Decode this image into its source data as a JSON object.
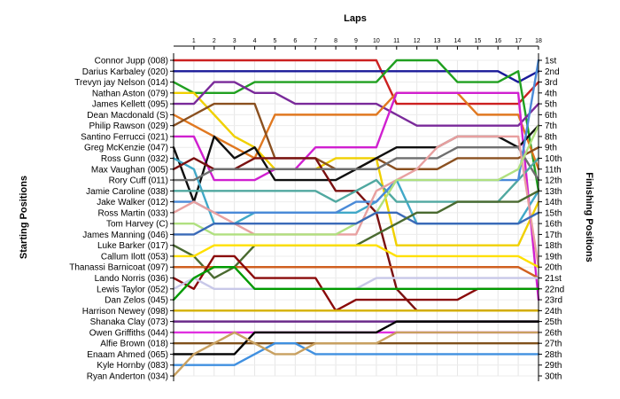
{
  "chart_data": {
    "type": "line",
    "title": "",
    "xlabel": "Laps",
    "ylabel_left": "Starting Positions",
    "ylabel_right": "Finishing Positions",
    "x": [
      0,
      1,
      2,
      3,
      4,
      5,
      6,
      7,
      8,
      9,
      10,
      11,
      12,
      13,
      14,
      15,
      16,
      17,
      18
    ],
    "x_tick_labels": [
      "1",
      "2",
      "3",
      "4",
      "5",
      "6",
      "7",
      "8",
      "9",
      "10",
      "11",
      "12",
      "13",
      "14",
      "15",
      "16",
      "17",
      "18"
    ],
    "y_range": [
      1,
      30
    ],
    "grid": true,
    "starting_grid": [
      "Connor Jupp (008)",
      "Darius Karbaley (020)",
      "Trevyn jay Nelson (014)",
      "Nathan Aston (079)",
      "James Kellett (095)",
      "Dean Macdonald (S)",
      "Philip Rawson (029)",
      "Santino Ferrucci (021)",
      "Greg McKenzie (047)",
      "Ross Gunn (032)",
      "Max Vaughan (005)",
      "Rory Cuff (011)",
      "Jamie Caroline (038)",
      "Jake Walker (012)",
      "Ross Martin (033)",
      "Tom Harvey (C)",
      "James Manning (046)",
      "Luke Barker (017)",
      "Callum Ilott (053)",
      "Thanassi Barnicoat (097)",
      "Lando Norris (036)",
      "Lewis Taylor (052)",
      "Dan Zelos (045)",
      "Harrison Newey (098)",
      "Shanaka Clay (073)",
      "Owen Griffiths (044)",
      "Alfie Brown (018)",
      "Enaam Ahmed (065)",
      "Kyle Hornby (083)",
      "Ryan Anderton (034)"
    ],
    "finishing_labels": [
      "1st",
      "2nd",
      "3rd",
      "4th",
      "5th",
      "6th",
      "7th",
      "8th",
      "9th",
      "10th",
      "11th",
      "12th",
      "13th",
      "14th",
      "15th",
      "16th",
      "17th",
      "18th",
      "19th",
      "20th",
      "21st",
      "22nd",
      "23rd",
      "24th",
      "25th",
      "26th",
      "27th",
      "28th",
      "29th",
      "30th"
    ],
    "series": [
      {
        "color": "#cc2020",
        "positions": [
          1,
          1,
          1,
          1,
          1,
          1,
          1,
          1,
          1,
          1,
          1,
          5,
          5,
          5,
          5,
          5,
          5,
          5,
          3
        ]
      },
      {
        "color": "#1a1a99",
        "positions": [
          2,
          2,
          2,
          2,
          2,
          2,
          2,
          2,
          2,
          2,
          2,
          2,
          2,
          2,
          2,
          2,
          2,
          3,
          2
        ]
      },
      {
        "color": "#20a020",
        "positions": [
          3,
          4,
          4,
          4,
          3,
          3,
          3,
          3,
          3,
          3,
          3,
          1,
          1,
          1,
          3,
          3,
          3,
          2,
          13
        ]
      },
      {
        "color": "#f0d000",
        "positions": [
          4,
          4,
          6,
          8,
          9,
          11,
          11,
          11,
          10,
          10,
          10,
          18,
          18,
          18,
          18,
          18,
          18,
          18,
          14
        ]
      },
      {
        "color": "#7a2a9a",
        "positions": [
          5,
          5,
          3,
          3,
          4,
          4,
          5,
          5,
          5,
          5,
          5,
          6,
          7,
          7,
          7,
          7,
          7,
          7,
          5
        ]
      },
      {
        "color": "#e07820",
        "positions": [
          6,
          7,
          8,
          9,
          10,
          6,
          6,
          6,
          6,
          6,
          6,
          4,
          4,
          4,
          4,
          6,
          6,
          6,
          11
        ]
      },
      {
        "color": "#8a5020",
        "positions": [
          7,
          6,
          5,
          5,
          5,
          10,
          10,
          10,
          11,
          11,
          10,
          11,
          11,
          11,
          10,
          10,
          10,
          10,
          9
        ]
      },
      {
        "color": "#d020d0",
        "positions": [
          8,
          8,
          12,
          12,
          12,
          11,
          11,
          9,
          9,
          9,
          9,
          4,
          4,
          4,
          4,
          4,
          4,
          4,
          23
        ]
      },
      {
        "color": "#101010",
        "positions": [
          9,
          14,
          8,
          10,
          9,
          12,
          12,
          12,
          12,
          11,
          10,
          9,
          9,
          9,
          8,
          8,
          8,
          9,
          7
        ]
      },
      {
        "color": "#40a8c8",
        "positions": [
          10,
          11,
          16,
          16,
          15,
          15,
          15,
          15,
          15,
          15,
          14,
          12,
          16,
          16,
          16,
          16,
          16,
          16,
          13
        ]
      },
      {
        "color": "#7a1010",
        "positions": [
          11,
          10,
          11,
          11,
          10,
          10,
          10,
          10,
          13,
          13,
          15,
          22,
          24,
          24,
          24,
          24,
          24,
          24,
          24
        ]
      },
      {
        "color": "#6f6f6f",
        "positions": [
          12,
          12,
          11,
          11,
          11,
          11,
          11,
          11,
          11,
          11,
          11,
          10,
          10,
          10,
          9,
          9,
          9,
          9,
          12
        ]
      },
      {
        "color": "#50a8a0",
        "positions": [
          13,
          13,
          13,
          13,
          13,
          13,
          13,
          13,
          14,
          13,
          12,
          14,
          14,
          14,
          14,
          14,
          14,
          12,
          10
        ]
      },
      {
        "color": "#4a8ad8",
        "positions": [
          14,
          14,
          15,
          15,
          15,
          15,
          15,
          15,
          15,
          14,
          14,
          12,
          12,
          12,
          12,
          12,
          12,
          12,
          1
        ]
      },
      {
        "color": "#e8a0a0",
        "positions": [
          15,
          14,
          15,
          16,
          17,
          17,
          17,
          17,
          17,
          17,
          13,
          12,
          11,
          9,
          8,
          8,
          8,
          8,
          20
        ]
      },
      {
        "color": "#b0e080",
        "positions": [
          16,
          16,
          17,
          17,
          17,
          17,
          17,
          17,
          17,
          16,
          15,
          12,
          12,
          12,
          12,
          12,
          12,
          11,
          7
        ]
      },
      {
        "color": "#3a6ab8",
        "positions": [
          17,
          17,
          16,
          16,
          16,
          16,
          16,
          16,
          16,
          16,
          15,
          15,
          16,
          16,
          16,
          16,
          16,
          16,
          15
        ]
      },
      {
        "color": "#4a6a30",
        "positions": [
          18,
          19,
          21,
          20,
          18,
          18,
          18,
          18,
          18,
          18,
          17,
          16,
          15,
          15,
          14,
          14,
          14,
          14,
          13
        ]
      },
      {
        "color": "#ffe000",
        "positions": [
          19,
          19,
          18,
          18,
          18,
          18,
          18,
          18,
          18,
          18,
          18,
          19,
          19,
          19,
          19,
          19,
          19,
          19,
          20
        ]
      },
      {
        "color": "#d06020",
        "positions": [
          20,
          20,
          20,
          20,
          20,
          20,
          20,
          20,
          20,
          20,
          20,
          20,
          20,
          20,
          20,
          20,
          20,
          20,
          21
        ]
      },
      {
        "color": "#8a0a0a",
        "positions": [
          21,
          22,
          19,
          19,
          21,
          21,
          21,
          21,
          24,
          23,
          23,
          23,
          23,
          23,
          23,
          22,
          22,
          22,
          22
        ]
      },
      {
        "color": "#c8c8e8",
        "positions": [
          22,
          21,
          22,
          22,
          22,
          22,
          22,
          22,
          22,
          22,
          21,
          21,
          21,
          21,
          21,
          21,
          21,
          21,
          21
        ]
      },
      {
        "color": "#009a00",
        "positions": [
          23,
          21,
          20,
          20,
          22,
          22,
          22,
          22,
          22,
          22,
          22,
          22,
          22,
          22,
          22,
          22,
          22,
          22,
          22
        ]
      },
      {
        "color": "#d4b000",
        "positions": [
          24,
          24,
          24,
          24,
          24,
          24,
          24,
          24,
          24,
          24,
          24,
          24,
          24,
          24,
          24,
          24,
          24,
          24,
          24
        ]
      },
      {
        "color": "#6a2a8a",
        "positions": [
          25,
          25,
          25,
          25,
          25,
          25,
          25,
          25,
          25,
          25,
          25,
          25,
          25,
          25,
          25,
          25,
          25,
          25,
          25
        ]
      },
      {
        "color": "#e030e0",
        "positions": [
          26,
          26,
          26,
          26,
          26,
          26,
          26,
          26,
          26,
          26,
          26,
          26,
          26,
          26,
          26,
          26,
          26,
          26,
          26
        ]
      },
      {
        "color": "#80501a",
        "positions": [
          27,
          27,
          27,
          27,
          27,
          27,
          27,
          27,
          27,
          27,
          27,
          27,
          27,
          27,
          27,
          27,
          27,
          27,
          27
        ]
      },
      {
        "color": "#000000",
        "positions": [
          28,
          28,
          28,
          28,
          26,
          26,
          26,
          26,
          26,
          26,
          26,
          25,
          25,
          25,
          25,
          25,
          25,
          25,
          25
        ]
      },
      {
        "color": "#4090e0",
        "positions": [
          29,
          29,
          29,
          29,
          28,
          27,
          27,
          28,
          28,
          28,
          28,
          28,
          28,
          28,
          28,
          28,
          28,
          28,
          28
        ]
      },
      {
        "color": "#c8a060",
        "positions": [
          30,
          28,
          27,
          26,
          27,
          28,
          28,
          27,
          27,
          27,
          27,
          26,
          26,
          26,
          26,
          26,
          26,
          26,
          26
        ]
      }
    ]
  }
}
